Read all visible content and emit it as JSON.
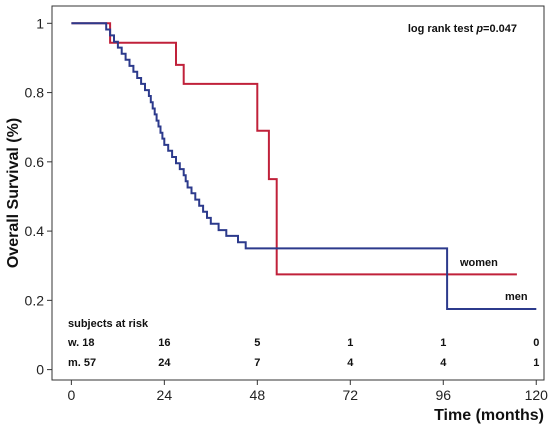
{
  "chart_data": {
    "type": "line",
    "title": "",
    "xlabel": "Time (months)",
    "ylabel": "Overall Survival (%)",
    "xlim": [
      -5,
      122
    ],
    "ylim": [
      -0.03,
      1.05
    ],
    "xticks": [
      0,
      24,
      48,
      72,
      96,
      120
    ],
    "xtick_labels": [
      "0",
      "24",
      "48",
      "72",
      "96",
      "120"
    ],
    "yticks": [
      0,
      0.2,
      0.4,
      0.6,
      0.8,
      1
    ],
    "ytick_labels": [
      "0",
      "0.2",
      "0.4",
      "0.6",
      "0.8",
      "1"
    ],
    "grid": false,
    "annotation": {
      "prefix": "log rank test ",
      "p_label": "p",
      "p_value": "=0.047"
    },
    "series": [
      {
        "name": "women",
        "color": "#c0213a",
        "steps": [
          [
            0,
            1.0
          ],
          [
            10,
            0.944
          ],
          [
            26,
            0.944
          ],
          [
            27,
            0.88
          ],
          [
            29,
            0.825
          ],
          [
            48,
            0.825
          ],
          [
            48,
            0.69
          ],
          [
            50,
            0.69
          ],
          [
            51,
            0.55
          ],
          [
            52,
            0.55
          ],
          [
            53,
            0.275
          ],
          [
            115,
            0.275
          ]
        ]
      },
      {
        "name": "men",
        "color": "#2c3a8c",
        "steps": [
          [
            0,
            1.0
          ],
          [
            8,
            1.0
          ],
          [
            9,
            0.982
          ],
          [
            10,
            0.965
          ],
          [
            11,
            0.947
          ],
          [
            12,
            0.93
          ],
          [
            13,
            0.912
          ],
          [
            14,
            0.895
          ],
          [
            15,
            0.877
          ],
          [
            16,
            0.86
          ],
          [
            17,
            0.842
          ],
          [
            18,
            0.825
          ],
          [
            19,
            0.807
          ],
          [
            20,
            0.79
          ],
          [
            20.5,
            0.772
          ],
          [
            21,
            0.754
          ],
          [
            21.5,
            0.737
          ],
          [
            22,
            0.719
          ],
          [
            22.5,
            0.702
          ],
          [
            23,
            0.684
          ],
          [
            23.5,
            0.667
          ],
          [
            24,
            0.649
          ],
          [
            25,
            0.632
          ],
          [
            26,
            0.614
          ],
          [
            27,
            0.596
          ],
          [
            28,
            0.579
          ],
          [
            29,
            0.561
          ],
          [
            29.5,
            0.544
          ],
          [
            30,
            0.526
          ],
          [
            31,
            0.509
          ],
          [
            32,
            0.491
          ],
          [
            33,
            0.473
          ],
          [
            34,
            0.456
          ],
          [
            35,
            0.438
          ],
          [
            36,
            0.421
          ],
          [
            38,
            0.403
          ],
          [
            40,
            0.386
          ],
          [
            43,
            0.368
          ],
          [
            45,
            0.35
          ],
          [
            96,
            0.35
          ],
          [
            97,
            0.175
          ],
          [
            120,
            0.175
          ]
        ]
      }
    ],
    "risk_table": {
      "title": "subjects at risk",
      "times": [
        0,
        24,
        48,
        72,
        96,
        120
      ],
      "rows": [
        {
          "label": "w. 18",
          "values": [
            "16",
            "5",
            "1",
            "1",
            "0"
          ]
        },
        {
          "label": "m. 57",
          "values": [
            "24",
            "7",
            "4",
            "4",
            "1"
          ]
        }
      ]
    }
  }
}
